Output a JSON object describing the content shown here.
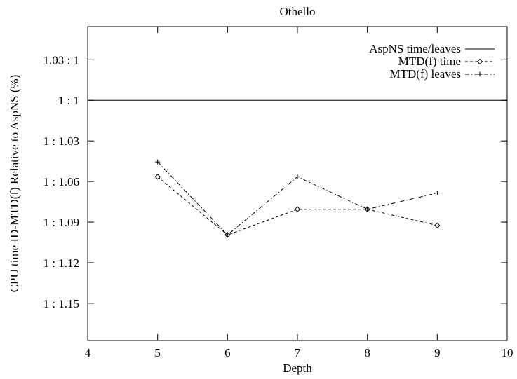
{
  "chart_data": {
    "type": "line",
    "title": "Othello",
    "xlabel": "Depth",
    "ylabel": "CPU time ID-MTD(f) Relative to AspNS (%)",
    "xlim": [
      4,
      10
    ],
    "x_ticks": [
      4,
      5,
      6,
      7,
      8,
      9,
      10
    ],
    "y_ticks": [
      {
        "label": "1.03 : 1",
        "value": -0.03
      },
      {
        "label": "1 : 1",
        "value": 0.0
      },
      {
        "label": "1 : 1.03",
        "value": 0.03
      },
      {
        "label": "1 : 1.06",
        "value": 0.06
      },
      {
        "label": "1 : 1.09",
        "value": 0.09
      },
      {
        "label": "1 : 1.12",
        "value": 0.12
      },
      {
        "label": "1 : 1.15",
        "value": 0.15
      }
    ],
    "ylim_top": -0.0545,
    "ylim_bottom": 0.1775,
    "grid": false,
    "legend": "top-right",
    "series": [
      {
        "name": "AspNS time/leaves",
        "style": "solid",
        "marker": "none",
        "x": [
          4,
          10
        ],
        "y": [
          0.0,
          0.0
        ]
      },
      {
        "name": "MTD(f) time",
        "style": "dashed",
        "marker": "diamond",
        "x": [
          5,
          6,
          7,
          8,
          9
        ],
        "y": [
          0.0565,
          0.0995,
          0.0805,
          0.0805,
          0.0925
        ]
      },
      {
        "name": "MTD(f) leaves",
        "style": "dashdot",
        "marker": "plus",
        "x": [
          5,
          6,
          7,
          8,
          9
        ],
        "y": [
          0.0455,
          0.0995,
          0.0565,
          0.0805,
          0.0685
        ]
      }
    ]
  }
}
